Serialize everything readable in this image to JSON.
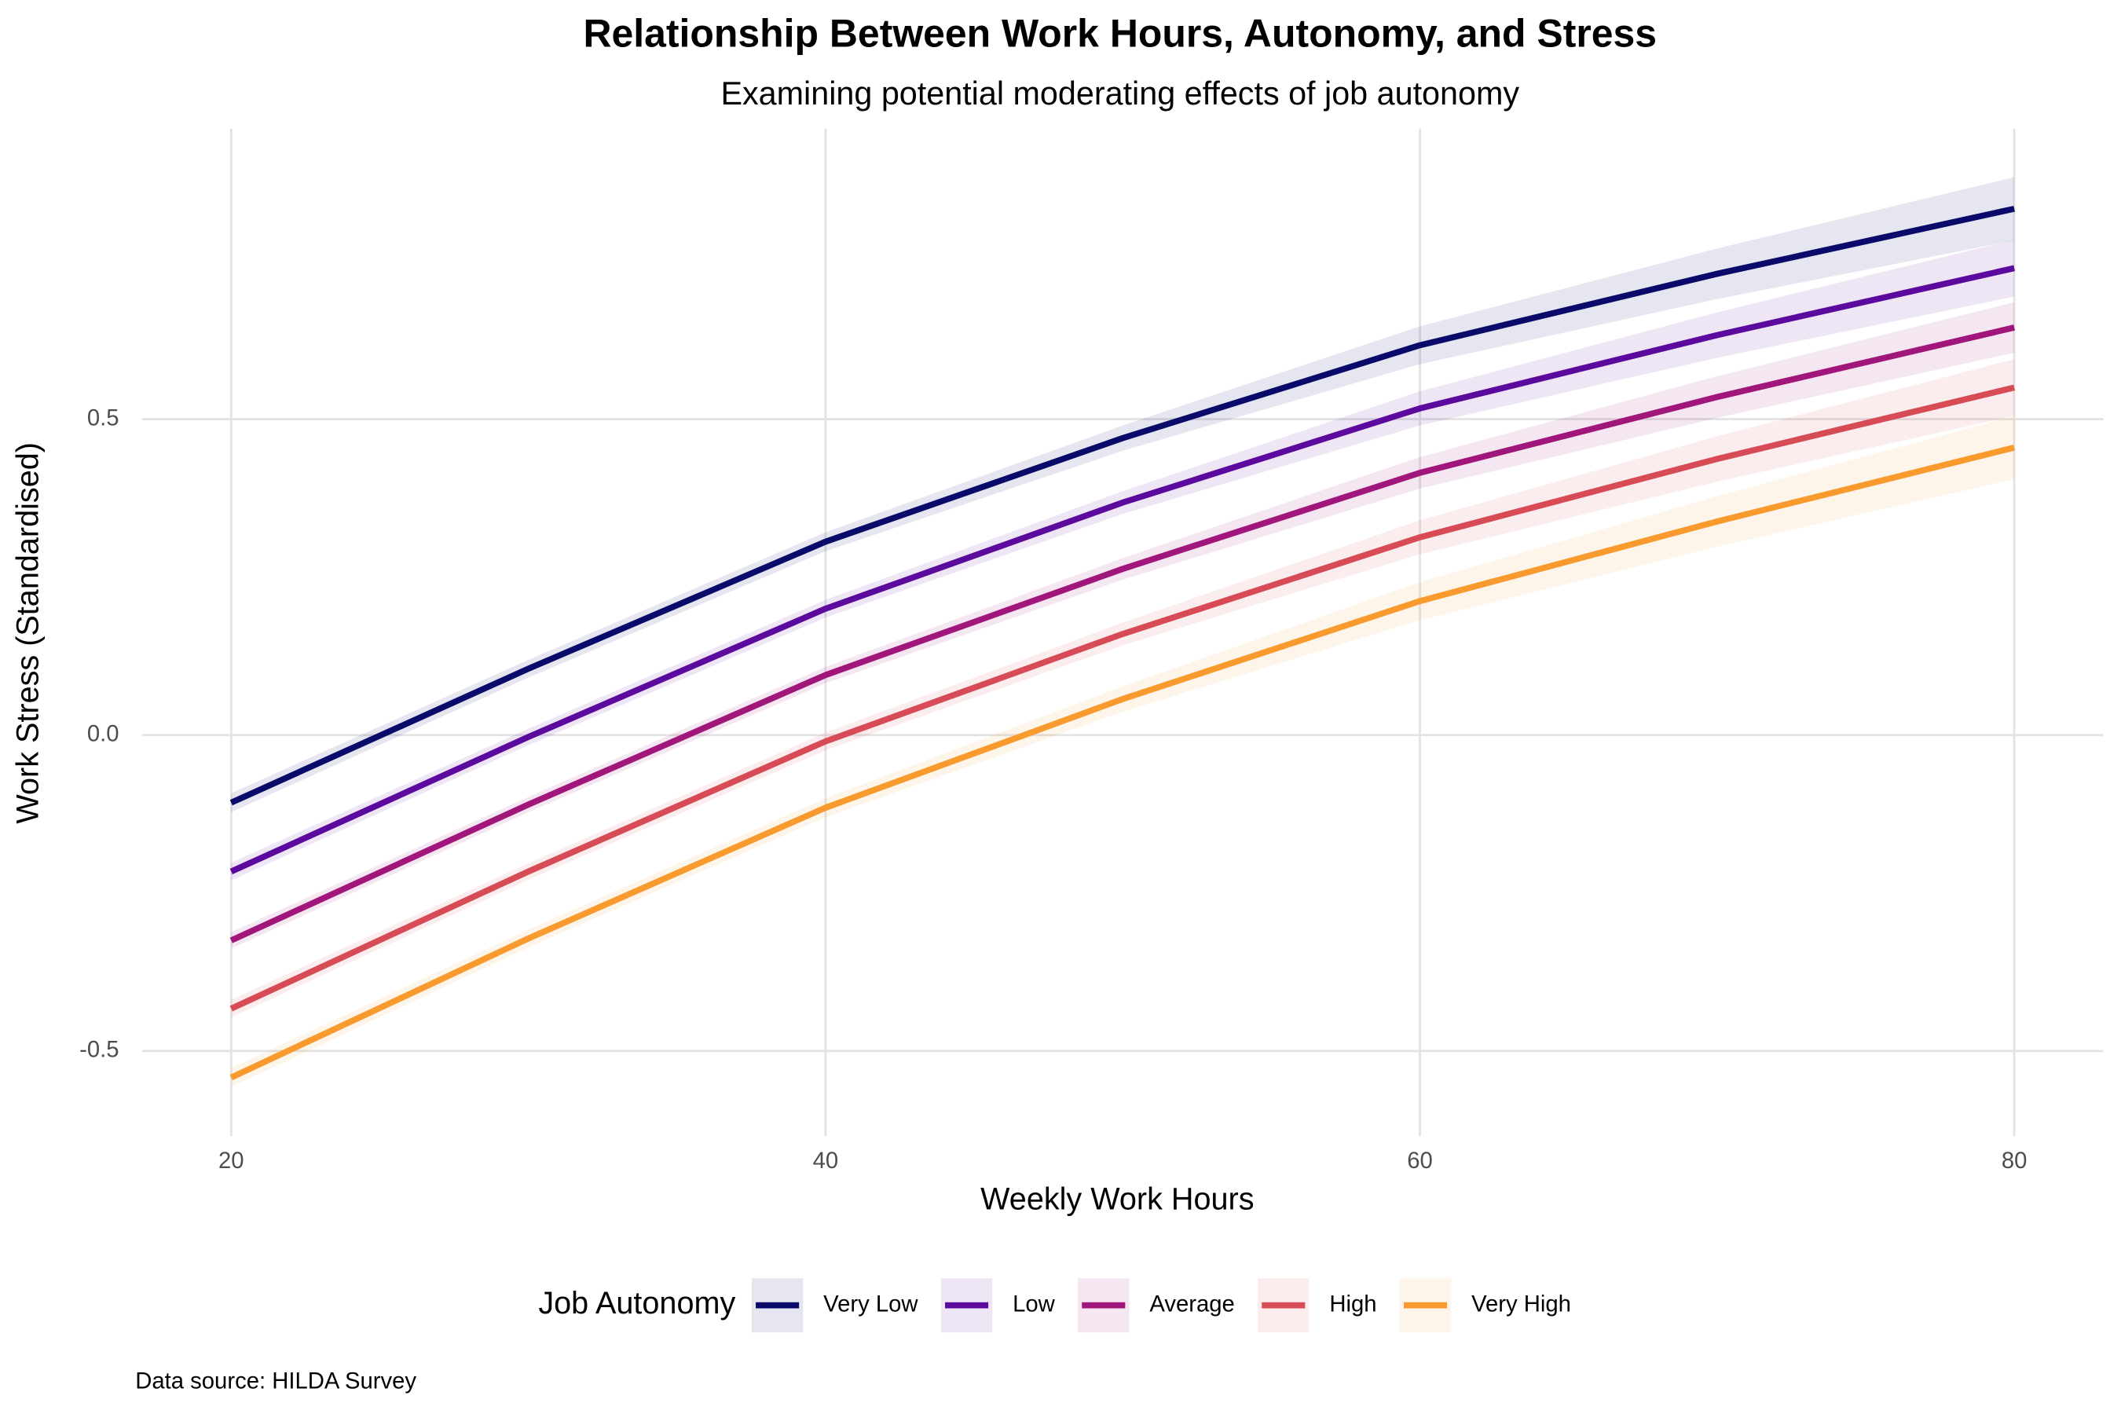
{
  "chart_data": {
    "type": "line",
    "title": "Relationship Between Work Hours, Autonomy, and Stress",
    "subtitle": "Examining potential moderating effects of job autonomy",
    "x_label": "Weekly Work Hours",
    "y_label": "Work Stress (Standardised)",
    "caption": "Data source: HILDA Survey",
    "legend_title": "Job Autonomy",
    "legend_position": "bottom",
    "grid": true,
    "xlim": [
      17,
      83
    ],
    "ylim": [
      -0.635,
      0.96
    ],
    "xticks": [
      20,
      40,
      60,
      80
    ],
    "yticks": [
      -0.5,
      {
        "value": 0,
        "label": "0.0"
      },
      0.5
    ],
    "x": [
      20,
      30,
      40,
      50,
      60,
      70,
      80
    ],
    "series": [
      {
        "name": "Very Low",
        "color": "#0a0a6b",
        "values": [
          -0.107,
          0.105,
          0.306,
          0.47,
          0.617,
          0.73,
          0.833
        ],
        "ci": [
          0.015,
          0.014,
          0.015,
          0.02,
          0.03,
          0.04,
          0.05
        ]
      },
      {
        "name": "Low",
        "color": "#5c0a9e",
        "values": [
          -0.216,
          -0.003,
          0.2,
          0.368,
          0.517,
          0.633,
          0.739
        ],
        "ci": [
          0.014,
          0.013,
          0.014,
          0.018,
          0.027,
          0.036,
          0.045
        ]
      },
      {
        "name": "Average",
        "color": "#a0167a",
        "values": [
          -0.325,
          -0.11,
          0.095,
          0.263,
          0.415,
          0.535,
          0.645
        ],
        "ci": [
          0.013,
          0.012,
          0.013,
          0.017,
          0.025,
          0.033,
          0.04
        ]
      },
      {
        "name": "High",
        "color": "#d64b55",
        "values": [
          -0.433,
          -0.216,
          -0.01,
          0.16,
          0.313,
          0.437,
          0.55
        ],
        "ci": [
          0.014,
          0.013,
          0.014,
          0.018,
          0.027,
          0.036,
          0.045
        ]
      },
      {
        "name": "Very High",
        "color": "#f89a2e",
        "values": [
          -0.542,
          -0.322,
          -0.115,
          0.057,
          0.212,
          0.338,
          0.455
        ],
        "ci": [
          0.015,
          0.014,
          0.015,
          0.02,
          0.03,
          0.04,
          0.05
        ]
      }
    ]
  }
}
